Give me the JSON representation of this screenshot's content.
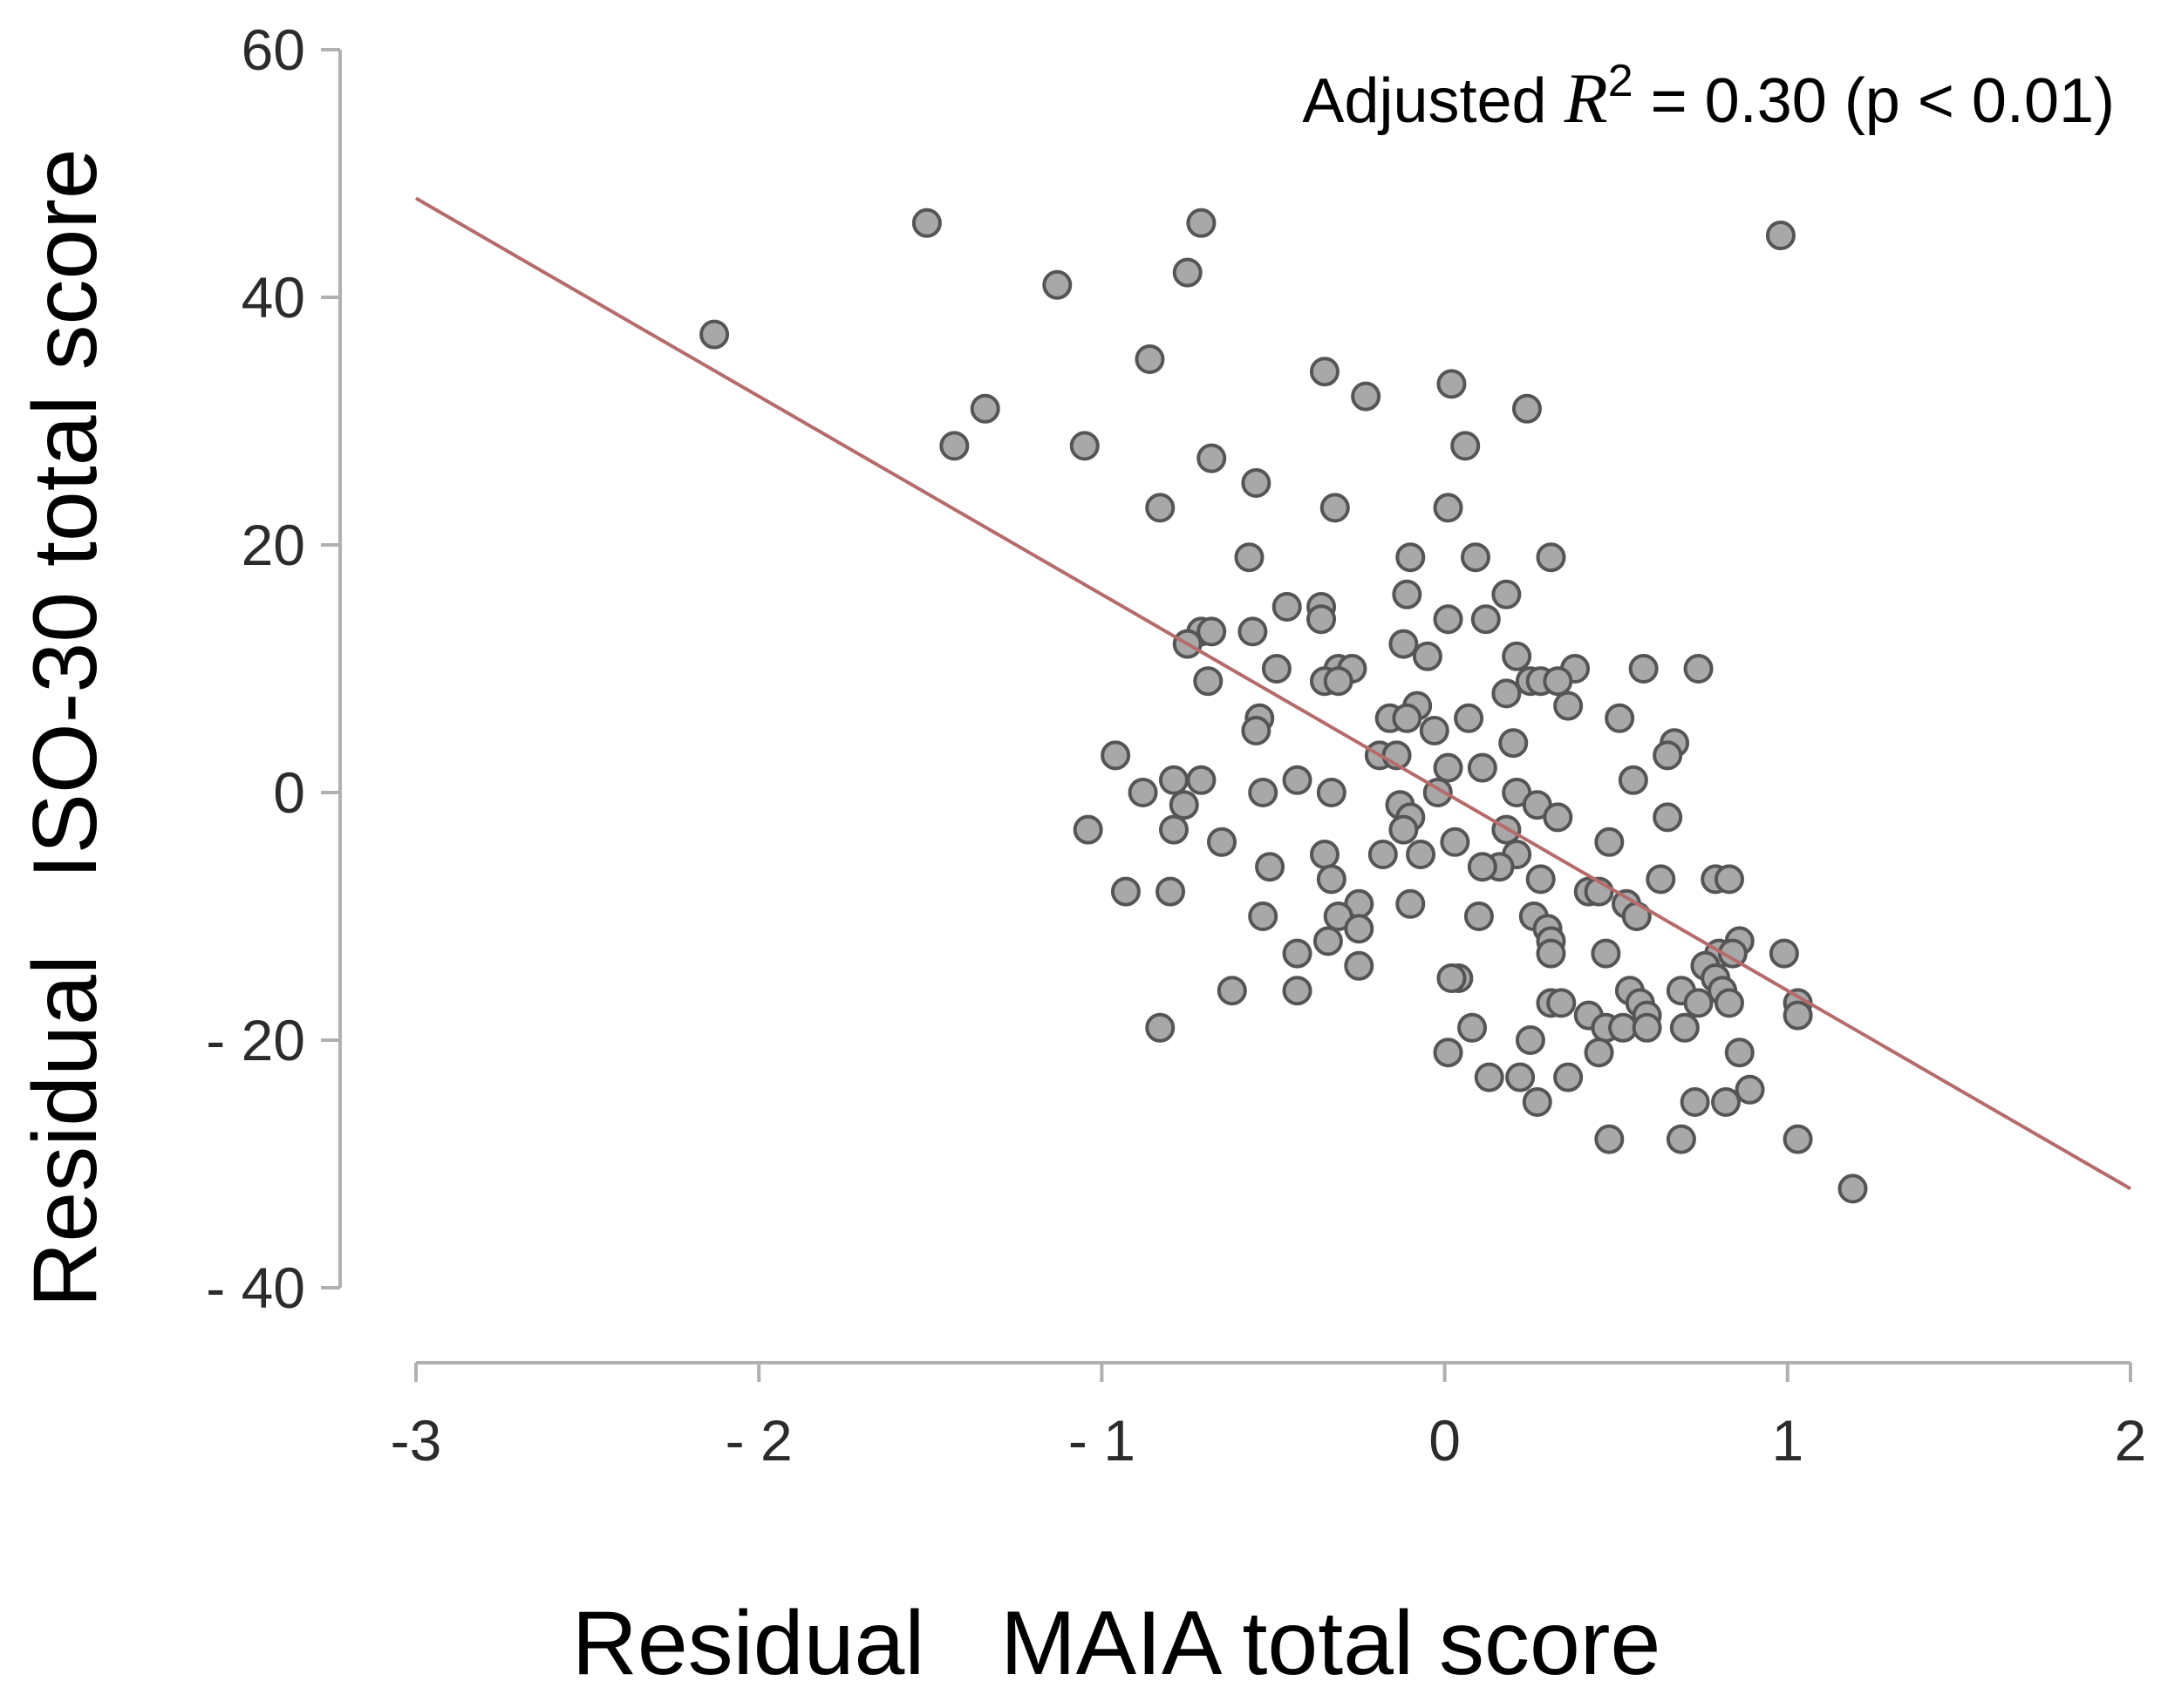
{
  "chart_data": {
    "type": "scatter",
    "xlabel": "Residual   MAIA total score",
    "ylabel": "Residual   ISO-30 total score",
    "xlim": [
      -3,
      2
    ],
    "ylim": [
      -40,
      60
    ],
    "xticks": [
      -3,
      -2,
      -1,
      0,
      1,
      2
    ],
    "xtick_labels": [
      "-3",
      "- 2",
      "- 1",
      "0",
      "1",
      "2"
    ],
    "yticks": [
      60,
      40,
      20,
      0,
      -20,
      -40
    ],
    "ytick_labels": [
      "60",
      "40",
      "20",
      "0",
      "- 20",
      "- 40"
    ],
    "grid": false,
    "annotation": {
      "prefix": "Adjusted ",
      "symbol": "R",
      "exponent": "2",
      "suffix": " = 0.30 (p < 0.01)"
    },
    "regression_line": {
      "x": [
        -3,
        2
      ],
      "y": [
        48,
        -32
      ],
      "color": "#b56b6b"
    },
    "point_color": "#a8a8a8",
    "point_edge_color": "#555555",
    "line_color": "#b56b6b",
    "axis_color": "#b0b0b0",
    "points": [
      {
        "x": -2.13,
        "y": 37
      },
      {
        "x": -1.51,
        "y": 46
      },
      {
        "x": -0.71,
        "y": 46
      },
      {
        "x": -0.75,
        "y": 42
      },
      {
        "x": -1.13,
        "y": 41
      },
      {
        "x": 0.98,
        "y": 45
      },
      {
        "x": -0.86,
        "y": 35
      },
      {
        "x": -0.35,
        "y": 34
      },
      {
        "x": 0.02,
        "y": 33
      },
      {
        "x": -1.34,
        "y": 31
      },
      {
        "x": -0.23,
        "y": 32
      },
      {
        "x": 0.24,
        "y": 31
      },
      {
        "x": -1.43,
        "y": 28
      },
      {
        "x": -1.05,
        "y": 28
      },
      {
        "x": -0.68,
        "y": 27
      },
      {
        "x": 0.06,
        "y": 28
      },
      {
        "x": -0.55,
        "y": 25
      },
      {
        "x": -0.83,
        "y": 23
      },
      {
        "x": -0.32,
        "y": 23
      },
      {
        "x": 0.01,
        "y": 23
      },
      {
        "x": -0.57,
        "y": 19
      },
      {
        "x": -0.1,
        "y": 19
      },
      {
        "x": 0.09,
        "y": 19
      },
      {
        "x": 0.31,
        "y": 19
      },
      {
        "x": -0.11,
        "y": 16
      },
      {
        "x": 0.18,
        "y": 16
      },
      {
        "x": -0.46,
        "y": 15
      },
      {
        "x": -0.36,
        "y": 15
      },
      {
        "x": -0.36,
        "y": 14
      },
      {
        "x": 0.01,
        "y": 14
      },
      {
        "x": 0.12,
        "y": 14
      },
      {
        "x": -0.71,
        "y": 13
      },
      {
        "x": -0.68,
        "y": 13
      },
      {
        "x": -0.56,
        "y": 13
      },
      {
        "x": -0.75,
        "y": 12
      },
      {
        "x": -0.12,
        "y": 12
      },
      {
        "x": -0.05,
        "y": 11
      },
      {
        "x": 0.21,
        "y": 11
      },
      {
        "x": -0.49,
        "y": 10
      },
      {
        "x": -0.31,
        "y": 10
      },
      {
        "x": -0.27,
        "y": 10
      },
      {
        "x": 0.38,
        "y": 10
      },
      {
        "x": 0.58,
        "y": 10
      },
      {
        "x": 0.74,
        "y": 10
      },
      {
        "x": -0.69,
        "y": 9
      },
      {
        "x": -0.35,
        "y": 9
      },
      {
        "x": -0.31,
        "y": 9
      },
      {
        "x": 0.25,
        "y": 9
      },
      {
        "x": 0.28,
        "y": 9
      },
      {
        "x": 0.33,
        "y": 9
      },
      {
        "x": 0.18,
        "y": 8
      },
      {
        "x": 0.36,
        "y": 7
      },
      {
        "x": -0.08,
        "y": 7
      },
      {
        "x": -0.54,
        "y": 6
      },
      {
        "x": -0.16,
        "y": 6
      },
      {
        "x": -0.11,
        "y": 6
      },
      {
        "x": 0.07,
        "y": 6
      },
      {
        "x": 0.51,
        "y": 6
      },
      {
        "x": -0.55,
        "y": 5
      },
      {
        "x": -0.03,
        "y": 5
      },
      {
        "x": 0.67,
        "y": 4
      },
      {
        "x": 0.2,
        "y": 4
      },
      {
        "x": -0.19,
        "y": 3
      },
      {
        "x": -0.14,
        "y": 3
      },
      {
        "x": 0.65,
        "y": 3
      },
      {
        "x": -0.96,
        "y": 3
      },
      {
        "x": 0.01,
        "y": 2
      },
      {
        "x": 0.11,
        "y": 2
      },
      {
        "x": 0.55,
        "y": 1
      },
      {
        "x": -0.79,
        "y": 1
      },
      {
        "x": -0.71,
        "y": 1
      },
      {
        "x": -0.43,
        "y": 1
      },
      {
        "x": -0.88,
        "y": 0
      },
      {
        "x": -0.53,
        "y": 0
      },
      {
        "x": -0.33,
        "y": 0
      },
      {
        "x": -0.02,
        "y": 0
      },
      {
        "x": 0.21,
        "y": 0
      },
      {
        "x": -0.76,
        "y": -1
      },
      {
        "x": -0.13,
        "y": -1
      },
      {
        "x": 0.27,
        "y": -1
      },
      {
        "x": -0.1,
        "y": -2
      },
      {
        "x": 0.33,
        "y": -2
      },
      {
        "x": 0.65,
        "y": -2
      },
      {
        "x": -1.04,
        "y": -3
      },
      {
        "x": -0.79,
        "y": -3
      },
      {
        "x": -0.12,
        "y": -3
      },
      {
        "x": 0.18,
        "y": -3
      },
      {
        "x": -0.65,
        "y": -4
      },
      {
        "x": 0.03,
        "y": -4
      },
      {
        "x": 0.48,
        "y": -4
      },
      {
        "x": -0.18,
        "y": -5
      },
      {
        "x": -0.35,
        "y": -5
      },
      {
        "x": -0.07,
        "y": -5
      },
      {
        "x": 0.21,
        "y": -5
      },
      {
        "x": 0.16,
        "y": -6
      },
      {
        "x": -0.51,
        "y": -6
      },
      {
        "x": 0.11,
        "y": -6
      },
      {
        "x": -0.33,
        "y": -7
      },
      {
        "x": 0.28,
        "y": -7
      },
      {
        "x": 0.63,
        "y": -7
      },
      {
        "x": 0.79,
        "y": -7
      },
      {
        "x": 0.83,
        "y": -7
      },
      {
        "x": -0.93,
        "y": -8
      },
      {
        "x": -0.8,
        "y": -8
      },
      {
        "x": 0.42,
        "y": -8
      },
      {
        "x": 0.45,
        "y": -8
      },
      {
        "x": -0.25,
        "y": -9
      },
      {
        "x": -0.1,
        "y": -9
      },
      {
        "x": 0.53,
        "y": -9
      },
      {
        "x": -0.53,
        "y": -10
      },
      {
        "x": -0.31,
        "y": -10
      },
      {
        "x": 0.1,
        "y": -10
      },
      {
        "x": 0.26,
        "y": -10
      },
      {
        "x": 0.56,
        "y": -10
      },
      {
        "x": -0.25,
        "y": -11
      },
      {
        "x": 0.3,
        "y": -11
      },
      {
        "x": 0.86,
        "y": -12
      },
      {
        "x": -0.34,
        "y": -12
      },
      {
        "x": 0.31,
        "y": -12
      },
      {
        "x": -0.43,
        "y": -13
      },
      {
        "x": 0.31,
        "y": -13
      },
      {
        "x": 0.47,
        "y": -13
      },
      {
        "x": 0.99,
        "y": -13
      },
      {
        "x": 0.8,
        "y": -13
      },
      {
        "x": 0.84,
        "y": -13
      },
      {
        "x": -0.25,
        "y": -14
      },
      {
        "x": 0.76,
        "y": -14
      },
      {
        "x": 0.04,
        "y": -15
      },
      {
        "x": 0.02,
        "y": -15
      },
      {
        "x": 0.79,
        "y": -15
      },
      {
        "x": -0.62,
        "y": -16
      },
      {
        "x": -0.43,
        "y": -16
      },
      {
        "x": 0.54,
        "y": -16
      },
      {
        "x": 0.69,
        "y": -16
      },
      {
        "x": 0.81,
        "y": -16
      },
      {
        "x": 0.31,
        "y": -17
      },
      {
        "x": 0.57,
        "y": -17
      },
      {
        "x": 0.74,
        "y": -17
      },
      {
        "x": 0.83,
        "y": -17
      },
      {
        "x": 1.03,
        "y": -17
      },
      {
        "x": 0.34,
        "y": -17
      },
      {
        "x": 0.42,
        "y": -18
      },
      {
        "x": 0.59,
        "y": -18
      },
      {
        "x": 1.03,
        "y": -18
      },
      {
        "x": -0.83,
        "y": -19
      },
      {
        "x": 0.08,
        "y": -19
      },
      {
        "x": 0.47,
        "y": -19
      },
      {
        "x": 0.52,
        "y": -19
      },
      {
        "x": 0.59,
        "y": -19
      },
      {
        "x": 0.7,
        "y": -19
      },
      {
        "x": 0.25,
        "y": -20
      },
      {
        "x": 0.01,
        "y": -21
      },
      {
        "x": 0.45,
        "y": -21
      },
      {
        "x": 0.86,
        "y": -21
      },
      {
        "x": 0.13,
        "y": -23
      },
      {
        "x": 0.22,
        "y": -23
      },
      {
        "x": 0.36,
        "y": -23
      },
      {
        "x": 0.89,
        "y": -24
      },
      {
        "x": 0.27,
        "y": -25
      },
      {
        "x": 0.73,
        "y": -25
      },
      {
        "x": 0.82,
        "y": -25
      },
      {
        "x": 0.48,
        "y": -28
      },
      {
        "x": 0.69,
        "y": -28
      },
      {
        "x": 1.03,
        "y": -28
      },
      {
        "x": 1.19,
        "y": -32
      }
    ]
  }
}
